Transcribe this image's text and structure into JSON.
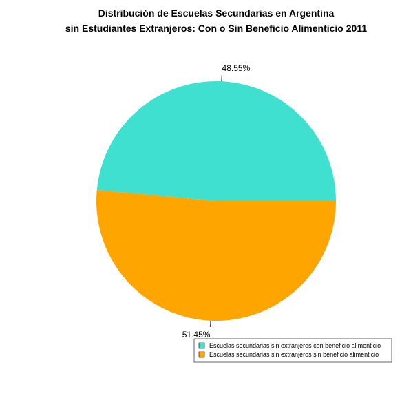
{
  "chart_data": {
    "type": "pie",
    "title_lines": [
      "Distribución de Escuelas Secundarias en Argentina",
      "sin Estudiantes Extranjeros: Con o Sin Beneficio Alimenticio 2011"
    ],
    "slices": [
      {
        "label": "Escuelas secundarias sin extranjeros con beneficio alimenticio",
        "value": 48.55,
        "value_label": "48.55%",
        "color": "#40E0D0"
      },
      {
        "label": "Escuelas secundarias sin extranjeros sin beneficio alimenticio",
        "value": 51.45,
        "value_label": "51.45%",
        "color": "#FFA500"
      }
    ],
    "start": "right, counter-clockwise",
    "legend_position": "bottom-right"
  }
}
